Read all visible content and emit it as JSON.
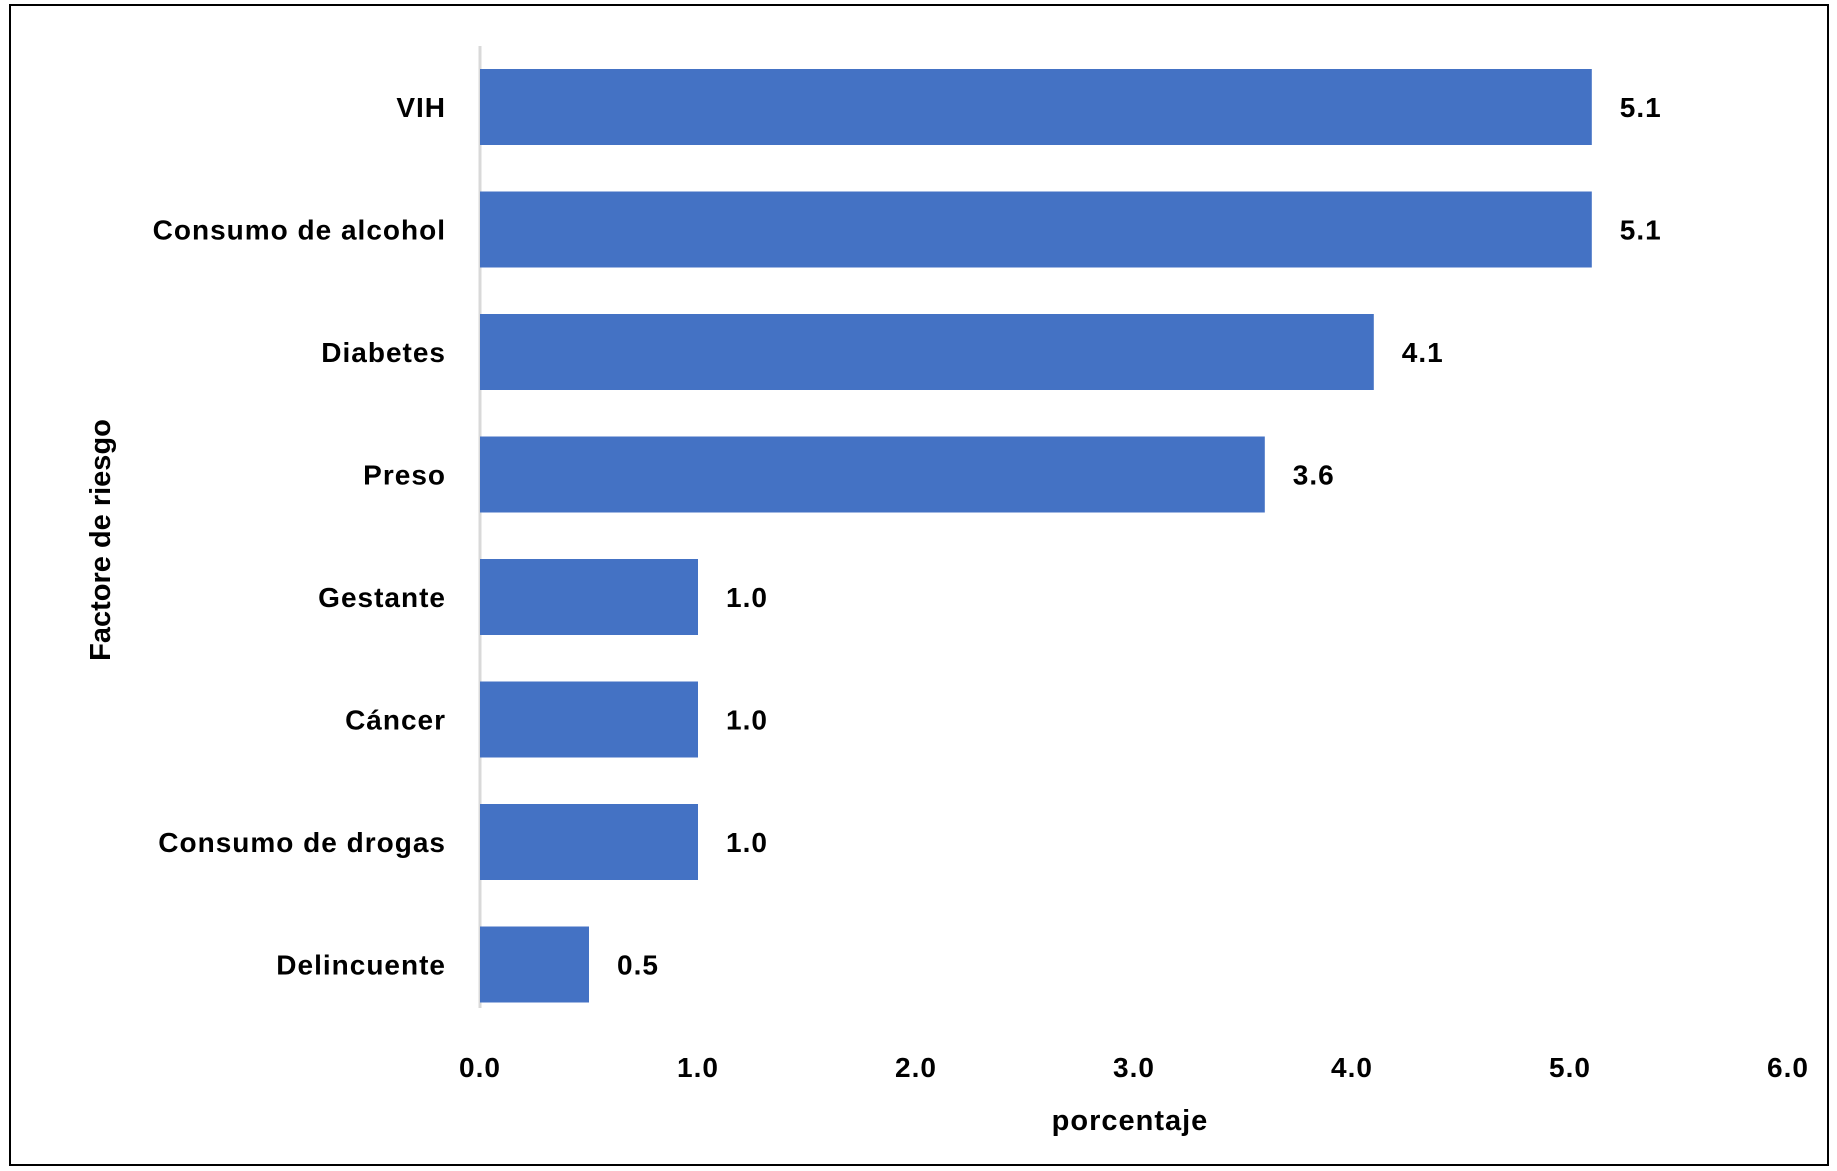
{
  "chart_data": {
    "type": "bar",
    "orientation": "horizontal",
    "categories": [
      "VIH",
      "Consumo de alcohol",
      "Diabetes",
      "Preso",
      "Gestante",
      "Cáncer",
      "Consumo de drogas",
      "Delincuente"
    ],
    "values": [
      5.1,
      5.1,
      4.1,
      3.6,
      1.0,
      1.0,
      1.0,
      0.5
    ],
    "value_labels": [
      "5.1",
      "5.1",
      "4.1",
      "3.6",
      "1.0",
      "1.0",
      "1.0",
      "0.5"
    ],
    "xlabel": "porcentaje",
    "ylabel": "Factore de riesgo",
    "xlim": [
      0,
      6
    ],
    "xticks": [
      "0.0",
      "1.0",
      "2.0",
      "3.0",
      "4.0",
      "5.0",
      "6.0"
    ],
    "grid": false,
    "legend": "none",
    "bar_color": "#4472C4"
  }
}
